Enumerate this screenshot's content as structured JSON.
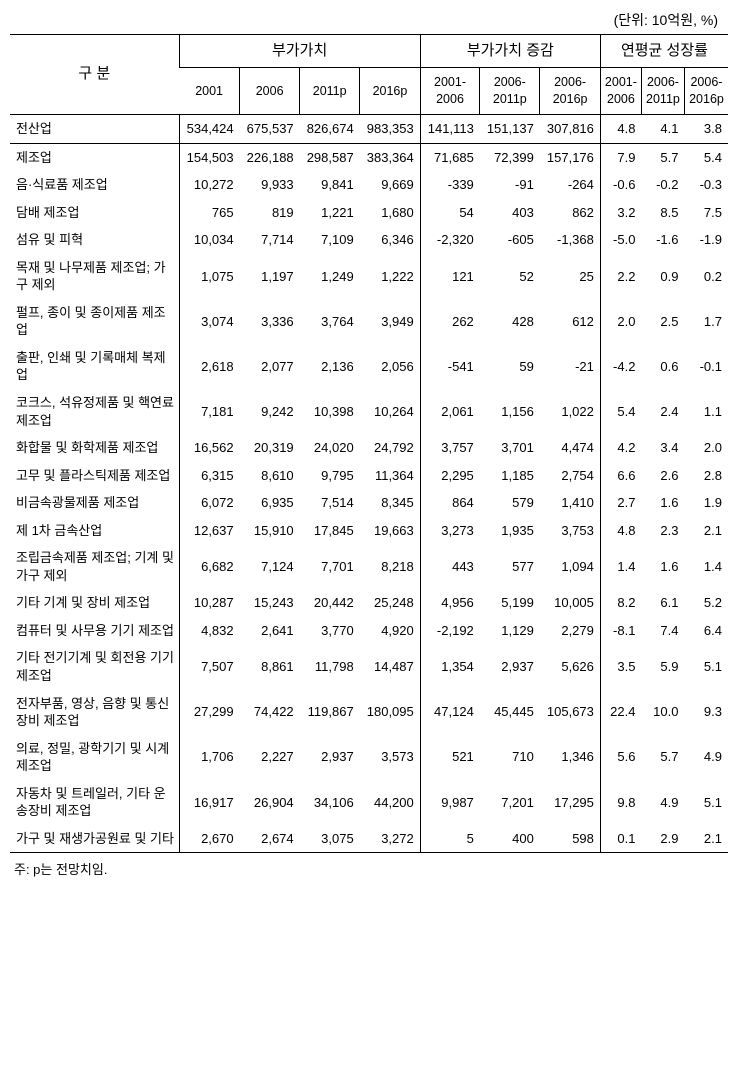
{
  "unit_label": "(단위: 10억원, %)",
  "corner_label": "구 분",
  "group_headers": [
    "부가가치",
    "부가가치 증감",
    "연평균 성장률"
  ],
  "sub_headers": [
    "2001",
    "2006",
    "2011p",
    "2016p",
    "2001-\n2006",
    "2006-\n2011p",
    "2006-\n2016p",
    "2001-\n2006",
    "2006-\n2011p",
    "2006-\n2016p"
  ],
  "rows": [
    {
      "label": "전산업",
      "v": [
        "534,424",
        "675,537",
        "826,674",
        "983,353",
        "141,113",
        "151,137",
        "307,816",
        "4.8",
        "4.1",
        "3.8"
      ],
      "hl": true
    },
    {
      "label": "제조업",
      "v": [
        "154,503",
        "226,188",
        "298,587",
        "383,364",
        "71,685",
        "72,399",
        "157,176",
        "7.9",
        "5.7",
        "5.4"
      ]
    },
    {
      "label": "음·식료품 제조업",
      "v": [
        "10,272",
        "9,933",
        "9,841",
        "9,669",
        "-339",
        "-91",
        "-264",
        "-0.6",
        "-0.2",
        "-0.3"
      ]
    },
    {
      "label": "담배 제조업",
      "v": [
        "765",
        "819",
        "1,221",
        "1,680",
        "54",
        "403",
        "862",
        "3.2",
        "8.5",
        "7.5"
      ]
    },
    {
      "label": "섬유 및 피혁",
      "v": [
        "10,034",
        "7,714",
        "7,109",
        "6,346",
        "-2,320",
        "-605",
        "-1,368",
        "-5.0",
        "-1.6",
        "-1.9"
      ]
    },
    {
      "label": "목재 및 나무제품 제조업; 가구 제외",
      "v": [
        "1,075",
        "1,197",
        "1,249",
        "1,222",
        "121",
        "52",
        "25",
        "2.2",
        "0.9",
        "0.2"
      ]
    },
    {
      "label": "펄프, 종이 및 종이제품 제조업",
      "v": [
        "3,074",
        "3,336",
        "3,764",
        "3,949",
        "262",
        "428",
        "612",
        "2.0",
        "2.5",
        "1.7"
      ]
    },
    {
      "label": "출판, 인쇄 및 기록매체 복제업",
      "v": [
        "2,618",
        "2,077",
        "2,136",
        "2,056",
        "-541",
        "59",
        "-21",
        "-4.2",
        "0.6",
        "-0.1"
      ]
    },
    {
      "label": "코크스, 석유정제품 및 핵연료 제조업",
      "v": [
        "7,181",
        "9,242",
        "10,398",
        "10,264",
        "2,061",
        "1,156",
        "1,022",
        "5.4",
        "2.4",
        "1.1"
      ]
    },
    {
      "label": "화합물 및 화학제품 제조업",
      "v": [
        "16,562",
        "20,319",
        "24,020",
        "24,792",
        "3,757",
        "3,701",
        "4,474",
        "4.2",
        "3.4",
        "2.0"
      ]
    },
    {
      "label": "고무 및 플라스틱제품 제조업",
      "v": [
        "6,315",
        "8,610",
        "9,795",
        "11,364",
        "2,295",
        "1,185",
        "2,754",
        "6.6",
        "2.6",
        "2.8"
      ]
    },
    {
      "label": "비금속광물제품 제조업",
      "v": [
        "6,072",
        "6,935",
        "7,514",
        "8,345",
        "864",
        "579",
        "1,410",
        "2.7",
        "1.6",
        "1.9"
      ]
    },
    {
      "label": "제 1차 금속산업",
      "v": [
        "12,637",
        "15,910",
        "17,845",
        "19,663",
        "3,273",
        "1,935",
        "3,753",
        "4.8",
        "2.3",
        "2.1"
      ]
    },
    {
      "label": "조립금속제품 제조업; 기계 및 가구 제외",
      "v": [
        "6,682",
        "7,124",
        "7,701",
        "8,218",
        "443",
        "577",
        "1,094",
        "1.4",
        "1.6",
        "1.4"
      ]
    },
    {
      "label": "기타 기계 및 장비 제조업",
      "v": [
        "10,287",
        "15,243",
        "20,442",
        "25,248",
        "4,956",
        "5,199",
        "10,005",
        "8.2",
        "6.1",
        "5.2"
      ]
    },
    {
      "label": "컴퓨터 및 사무용 기기 제조업",
      "v": [
        "4,832",
        "2,641",
        "3,770",
        "4,920",
        "-2,192",
        "1,129",
        "2,279",
        "-8.1",
        "7.4",
        "6.4"
      ]
    },
    {
      "label": "기타 전기기계 및 회전용 기기 제조업",
      "v": [
        "7,507",
        "8,861",
        "11,798",
        "14,487",
        "1,354",
        "2,937",
        "5,626",
        "3.5",
        "5.9",
        "5.1"
      ]
    },
    {
      "label": "전자부품, 영상, 음향 및 통신장비 제조업",
      "v": [
        "27,299",
        "74,422",
        "119,867",
        "180,095",
        "47,124",
        "45,445",
        "105,673",
        "22.4",
        "10.0",
        "9.3"
      ]
    },
    {
      "label": "의료, 정밀, 광학기기 및 시계 제조업",
      "v": [
        "1,706",
        "2,227",
        "2,937",
        "3,573",
        "521",
        "710",
        "1,346",
        "5.6",
        "5.7",
        "4.9"
      ]
    },
    {
      "label": "자동차 및 트레일러, 기타 운송장비 제조업",
      "v": [
        "16,917",
        "26,904",
        "34,106",
        "44,200",
        "9,987",
        "7,201",
        "17,295",
        "9.8",
        "4.9",
        "5.1"
      ]
    },
    {
      "label": "가구 및 재생가공원료 및 기타",
      "v": [
        "2,670",
        "2,674",
        "3,075",
        "3,272",
        "5",
        "400",
        "598",
        "0.1",
        "2.9",
        "2.1"
      ]
    }
  ],
  "footnote": "주: p는 전망치임.",
  "style": {
    "background": "#ffffff",
    "text_color": "#000000",
    "border_color": "#000000",
    "font_family": "Malgun Gothic",
    "header_fontsize": 15,
    "sub_header_fontsize": 12.5,
    "body_fontsize": 13,
    "col_group_spans": [
      4,
      3,
      3
    ]
  }
}
